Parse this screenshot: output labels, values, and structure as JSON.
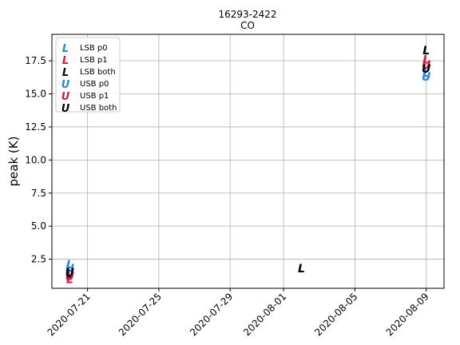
{
  "chart_data": {
    "type": "scatter",
    "title": "16293-2422",
    "subtitle": "CO",
    "xlabel": "",
    "ylabel": "peak (K)",
    "x_is_date": true,
    "xlim": [
      "2020-07-19",
      "2020-08-10"
    ],
    "ylim": [
      0.3,
      19.5
    ],
    "x_ticks": [
      "2020-07-21",
      "2020-07-25",
      "2020-07-29",
      "2020-08-01",
      "2020-08-05",
      "2020-08-09"
    ],
    "y_ticks": [
      2.5,
      5.0,
      7.5,
      10.0,
      12.5,
      15.0,
      17.5
    ],
    "y_tick_labels": [
      "2.5",
      "5.0",
      "7.5",
      "10.0",
      "12.5",
      "15.0",
      "17.5"
    ],
    "grid": true,
    "legend_position": "top-left",
    "series": [
      {
        "name": "LSB p0",
        "marker": "L",
        "color": "#1f88e5",
        "points": [
          {
            "x": "2020-07-20",
            "y": 2.1
          },
          {
            "x": "2020-08-09",
            "y": 16.6
          }
        ]
      },
      {
        "name": "LSB p1",
        "marker": "L",
        "color": "#dc143c",
        "points": [
          {
            "x": "2020-07-20",
            "y": 1.0
          },
          {
            "x": "2020-08-09",
            "y": 17.6
          }
        ]
      },
      {
        "name": "LSB both",
        "marker": "L",
        "color": "#000000",
        "points": [
          {
            "x": "2020-07-20",
            "y": 1.4
          },
          {
            "x": "2020-08-02",
            "y": 1.8
          },
          {
            "x": "2020-08-09",
            "y": 18.3
          }
        ]
      },
      {
        "name": "USB p0",
        "marker": "U",
        "color": "#1f88e5",
        "points": [
          {
            "x": "2020-07-20",
            "y": 1.8
          },
          {
            "x": "2020-08-09",
            "y": 16.3
          }
        ]
      },
      {
        "name": "USB p1",
        "marker": "U",
        "color": "#dc143c",
        "points": [
          {
            "x": "2020-07-20",
            "y": 1.2
          },
          {
            "x": "2020-08-09",
            "y": 17.2
          }
        ]
      },
      {
        "name": "USB both",
        "marker": "U",
        "color": "#000000",
        "points": [
          {
            "x": "2020-07-20",
            "y": 1.5
          },
          {
            "x": "2020-08-09",
            "y": 16.9
          }
        ]
      }
    ]
  }
}
